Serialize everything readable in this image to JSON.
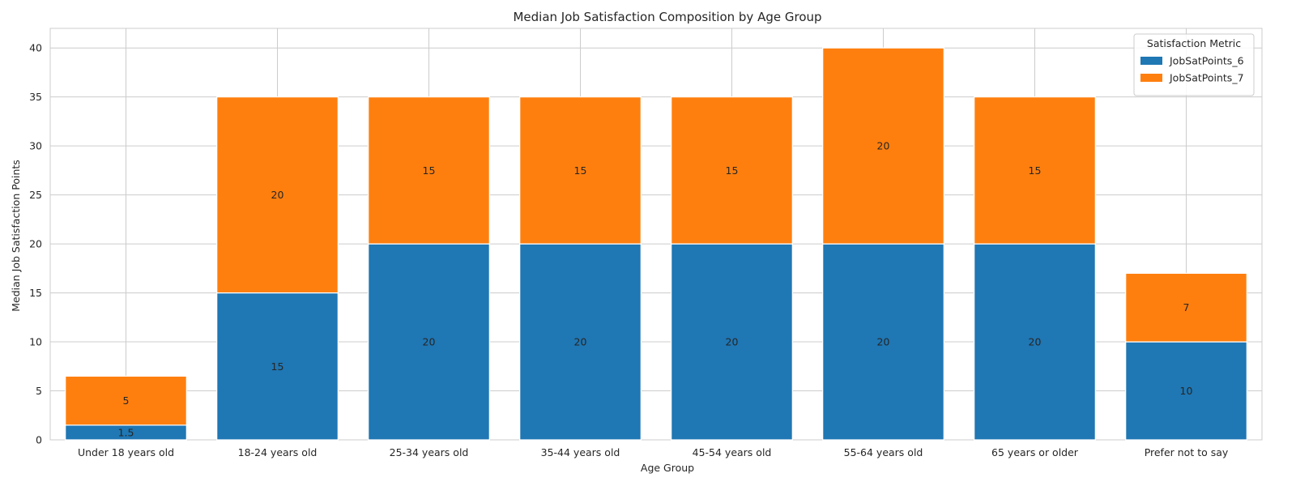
{
  "chart_data": {
    "type": "bar",
    "stacked": true,
    "title": "Median Job Satisfaction Composition by Age Group",
    "xlabel": "Age Group",
    "ylabel": "Median Job Satisfaction Points",
    "ylim": [
      0,
      42
    ],
    "yticks": [
      0,
      5,
      10,
      15,
      20,
      25,
      30,
      35,
      40
    ],
    "grid": true,
    "legend": {
      "title": "Satisfaction Metric",
      "placement": "top-right"
    },
    "categories": [
      "Under 18 years old",
      "18-24 years old",
      "25-34 years old",
      "35-44 years old",
      "45-54 years old",
      "55-64 years old",
      "65 years or older",
      "Prefer not to say"
    ],
    "series": [
      {
        "name": "JobSatPoints_6",
        "color": "#1f77b4",
        "values": [
          1.5,
          15,
          20,
          20,
          20,
          20,
          20,
          10
        ],
        "labels": [
          "1.5",
          "15",
          "20",
          "20",
          "20",
          "20",
          "20",
          "10"
        ]
      },
      {
        "name": "JobSatPoints_7",
        "color": "#ff7f0e",
        "values": [
          5,
          20,
          15,
          15,
          15,
          20,
          15,
          7
        ],
        "labels": [
          "5",
          "20",
          "15",
          "15",
          "15",
          "20",
          "15",
          "7"
        ]
      }
    ]
  }
}
